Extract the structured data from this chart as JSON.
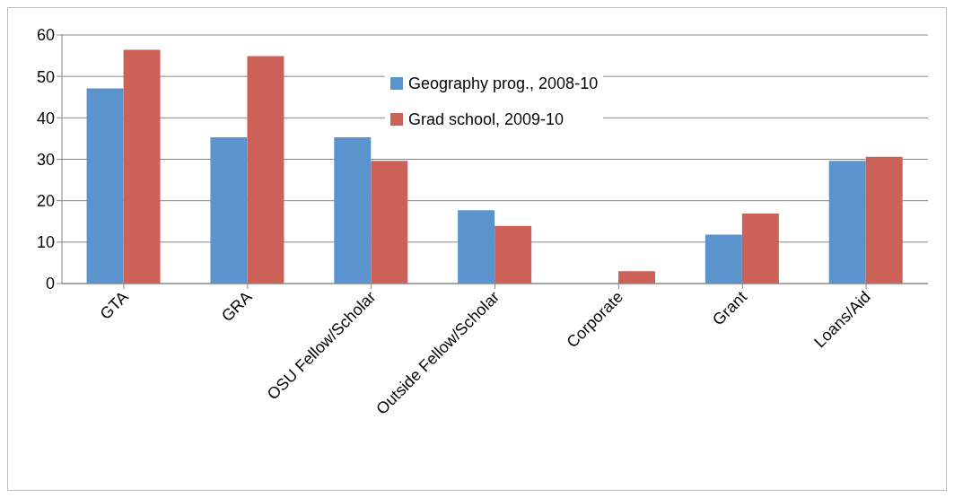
{
  "chart_data": {
    "type": "bar",
    "categories": [
      "GTA",
      "GRA",
      "OSU Fellow/Scholar",
      "Outside Fellow/Scholar",
      "Corporate",
      "Grant",
      "Loans/Aid"
    ],
    "series": [
      {
        "name": "Geography prog., 2008-10",
        "color": "#5b93cc",
        "values": [
          47.1,
          35.3,
          35.3,
          17.7,
          0,
          11.8,
          29.6
        ]
      },
      {
        "name": "Grad school, 2009-10",
        "color": "#cc6158",
        "values": [
          56.4,
          54.9,
          29.6,
          13.9,
          3.0,
          16.9,
          30.6
        ]
      }
    ],
    "ylim": [
      0,
      60
    ],
    "yticks": [
      0,
      10,
      20,
      30,
      40,
      50,
      60
    ],
    "grid": "y",
    "legend": "top"
  }
}
